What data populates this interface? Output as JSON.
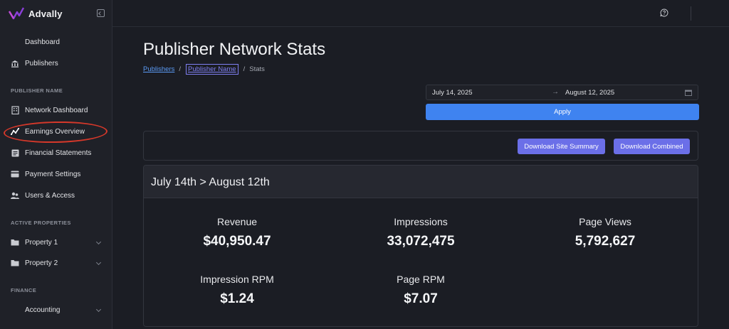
{
  "app": {
    "name": "Advally"
  },
  "sidebar": {
    "items_top": [
      {
        "label": "Dashboard",
        "icon": "none"
      },
      {
        "label": "Publishers",
        "icon": "bank-icon"
      }
    ],
    "section_publisher": "PUBLISHER NAME",
    "items_publisher": [
      {
        "label": "Network Dashboard",
        "icon": "building-icon"
      },
      {
        "label": "Earnings Overview",
        "icon": "chart-line-icon"
      },
      {
        "label": "Financial Statements",
        "icon": "document-icon"
      },
      {
        "label": "Payment Settings",
        "icon": "card-icon"
      },
      {
        "label": "Users & Access",
        "icon": "users-icon"
      }
    ],
    "section_properties": "ACTIVE PROPERTIES",
    "items_properties": [
      {
        "label": "Property 1",
        "icon": "folder-icon"
      },
      {
        "label": "Property 2",
        "icon": "folder-icon"
      }
    ],
    "section_finance": "FINANCE",
    "items_finance": [
      {
        "label": "Accounting",
        "icon": "none"
      }
    ]
  },
  "page": {
    "title": "Publisher Network Stats",
    "breadcrumb": [
      "Publishers",
      "Publisher Name",
      "Stats"
    ]
  },
  "date_range": {
    "start": "July 14, 2025",
    "arrow": "→",
    "end": "August 12, 2025"
  },
  "apply_label": "Apply",
  "downloads": {
    "site_summary": "Download Site Summary",
    "combined": "Download Combined"
  },
  "stats": {
    "heading": "July 14th > August 12th",
    "items": [
      {
        "label": "Revenue",
        "value": "$40,950.47"
      },
      {
        "label": "Impressions",
        "value": "33,072,475"
      },
      {
        "label": "Page Views",
        "value": "5,792,627"
      },
      {
        "label": "Impression RPM",
        "value": "$1.24"
      },
      {
        "label": "Page RPM",
        "value": "$7.07"
      }
    ]
  },
  "colors": {
    "accent_blue": "#3f83f0",
    "accent_purple": "#6b6fe8",
    "annotation_red": "#d5382a"
  }
}
